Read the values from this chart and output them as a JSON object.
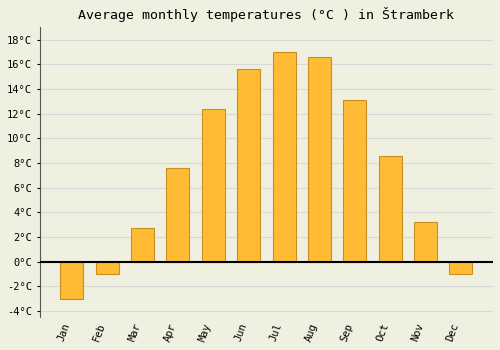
{
  "title": "Average monthly temperatures (°C ) in Štramberk",
  "months": [
    "Jan",
    "Feb",
    "Mar",
    "Apr",
    "May",
    "Jun",
    "Jul",
    "Aug",
    "Sep",
    "Oct",
    "Nov",
    "Dec"
  ],
  "temperatures": [
    -3.0,
    -1.0,
    2.7,
    7.6,
    12.4,
    15.6,
    17.0,
    16.6,
    13.1,
    8.6,
    3.2,
    -1.0
  ],
  "bar_color": "#FFBB33",
  "bar_edge_color": "#C89020",
  "background_color": "#F0F0E0",
  "grid_color": "#D8D8D8",
  "ylim": [
    -4.5,
    19
  ],
  "yticks": [
    -4,
    -2,
    0,
    2,
    4,
    6,
    8,
    10,
    12,
    14,
    16,
    18
  ],
  "title_fontsize": 9.5,
  "tick_fontsize": 7.5,
  "zero_line_color": "#000000",
  "left_spine_color": "#555555"
}
